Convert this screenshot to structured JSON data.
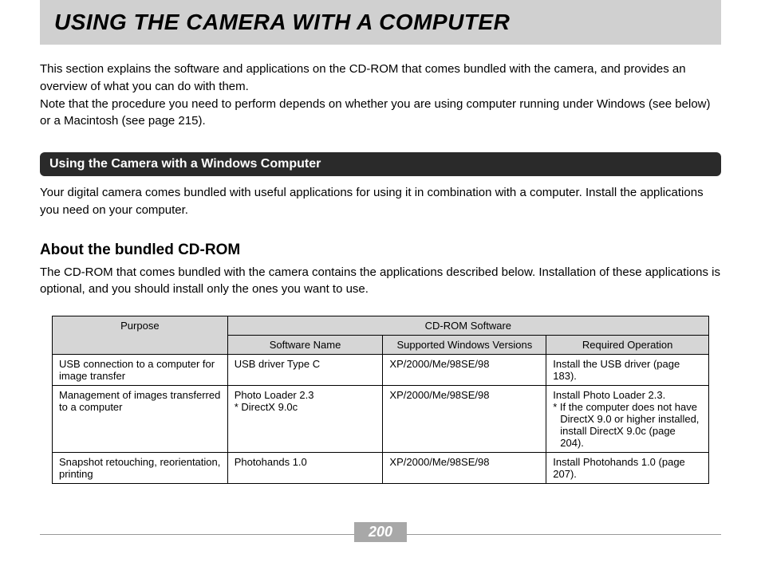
{
  "page": {
    "title": "USING THE CAMERA WITH A COMPUTER",
    "intro": "This section explains the software and applications on the CD-ROM that comes bundled with the camera, and provides an overview of what you can do with them.\nNote that the procedure you need to perform depends on whether you are using computer running under Windows (see below) or a Macintosh (see page 215).",
    "page_number": "200"
  },
  "section": {
    "bar_label": "Using the Camera with a Windows Computer",
    "body": "Your digital camera comes bundled with useful applications for using it in combination with a computer. Install the applications you need on your computer."
  },
  "sub": {
    "heading": "About the bundled CD-ROM",
    "body": "The CD-ROM that comes bundled with the camera contains the applications described below. Installation of these applications is optional, and you should install only the ones you want to use."
  },
  "table": {
    "headers": {
      "purpose": "Purpose",
      "group": "CD-ROM Software",
      "software_name": "Software Name",
      "supported": "Supported Windows Versions",
      "required": "Required Operation"
    },
    "rows": [
      {
        "purpose": "USB connection to a computer for image transfer",
        "software": "USB driver Type C",
        "supported": "XP/2000/Me/98SE/98",
        "required": "Install the USB driver (page 183)."
      },
      {
        "purpose": "Management of images transferred to a computer",
        "software": "Photo Loader 2.3\n* DirectX 9.0c",
        "supported": "XP/2000/Me/98SE/98",
        "required": "Install Photo Loader 2.3.",
        "required_note": "* If the computer does not have DirectX 9.0 or higher installed, install DirectX 9.0c (page 204)."
      },
      {
        "purpose": "Snapshot retouching, reorientation, printing",
        "software": "Photohands 1.0",
        "supported": "XP/2000/Me/98SE/98",
        "required": "Install Photohands 1.0 (page 207)."
      }
    ]
  },
  "colors": {
    "banner_bg": "#d0d0d0",
    "section_bar_bg": "#2a2a2a",
    "section_bar_fg": "#ffffff",
    "table_header_bg": "#d6d6d6",
    "page_num_bg": "#a8a8a8",
    "page_num_fg": "#ffffff",
    "rule": "#999999"
  }
}
